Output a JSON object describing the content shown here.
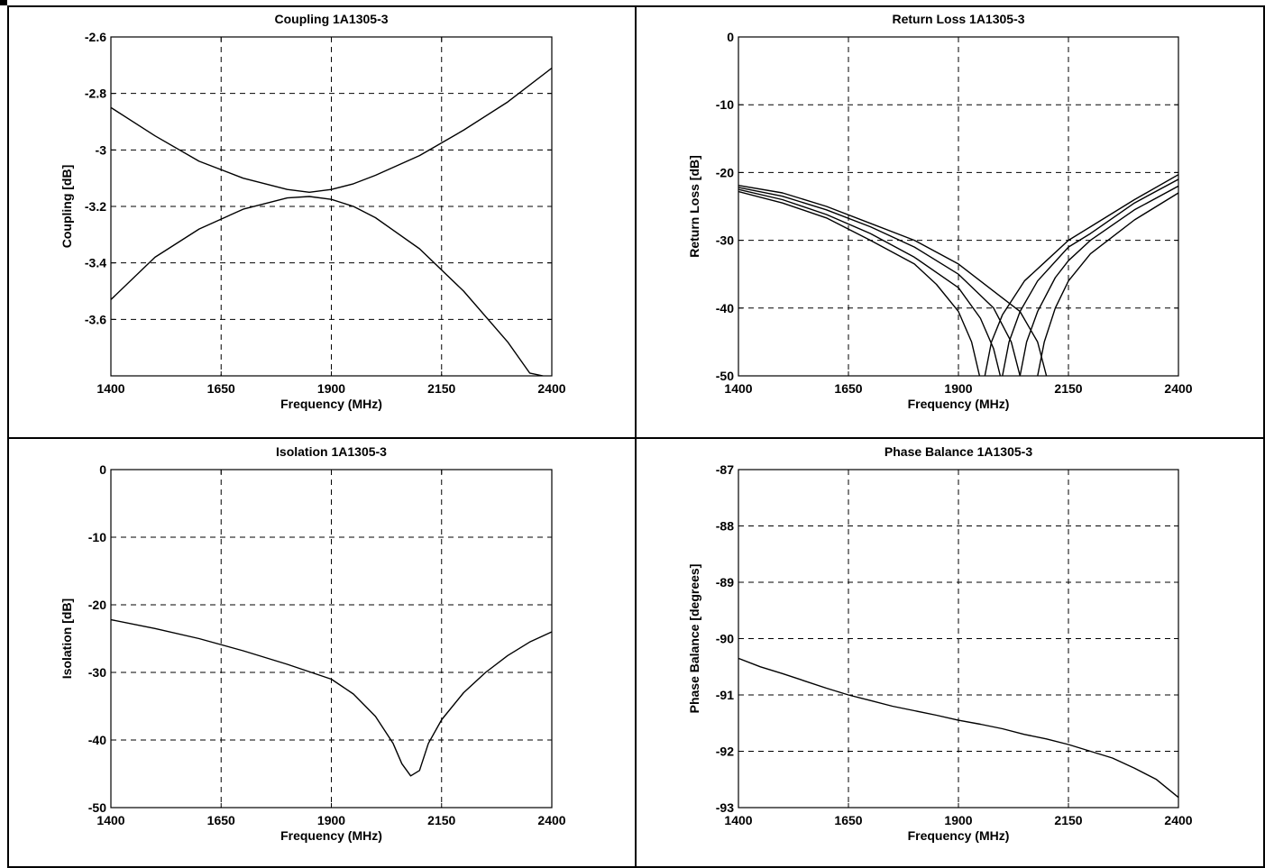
{
  "chart_data": [
    {
      "type": "line",
      "title": "Coupling 1A1305-3",
      "xlabel": "Frequency (MHz)",
      "ylabel": "Coupling [dB]",
      "xlim": [
        1400,
        2400
      ],
      "ylim": [
        -3.8,
        -2.6
      ],
      "xticks": [
        1400,
        1650,
        1900,
        2150,
        2400
      ],
      "xtick_labels": [
        "1400",
        "1650",
        "1900",
        "2150",
        "2400"
      ],
      "yticks": [
        -2.6,
        -2.8,
        -3.0,
        -3.2,
        -3.4,
        -3.6
      ],
      "ytick_labels": [
        "-2.6",
        "-2.8",
        "-3",
        "-3.2",
        "-3.4",
        "-3.6"
      ],
      "grid": true,
      "series": [
        {
          "x": [
            1400,
            1500,
            1600,
            1700,
            1800,
            1850,
            1900,
            1950,
            2000,
            2100,
            2200,
            2300,
            2400
          ],
          "y": [
            -2.85,
            -2.95,
            -3.04,
            -3.1,
            -3.14,
            -3.15,
            -3.14,
            -3.12,
            -3.09,
            -3.02,
            -2.93,
            -2.83,
            -2.71
          ]
        },
        {
          "x": [
            1400,
            1500,
            1600,
            1700,
            1800,
            1850,
            1900,
            1950,
            2000,
            2100,
            2200,
            2300,
            2350,
            2380
          ],
          "y": [
            -3.53,
            -3.38,
            -3.28,
            -3.21,
            -3.17,
            -3.165,
            -3.175,
            -3.2,
            -3.24,
            -3.35,
            -3.5,
            -3.68,
            -3.79,
            -3.8
          ]
        }
      ]
    },
    {
      "type": "line",
      "title": "Return Loss 1A1305-3",
      "xlabel": "Frequency (MHz)",
      "ylabel": "Return Loss [dB]",
      "xlim": [
        1400,
        2400
      ],
      "ylim": [
        -50,
        0
      ],
      "xticks": [
        1400,
        1650,
        1900,
        2150,
        2400
      ],
      "xtick_labels": [
        "1400",
        "1650",
        "1900",
        "2150",
        "2400"
      ],
      "yticks": [
        0,
        -10,
        -20,
        -30,
        -40,
        -50
      ],
      "ytick_labels": [
        "0",
        "-10",
        "-20",
        "-30",
        "-40",
        "-50"
      ],
      "grid": true,
      "series": [
        {
          "x": [
            1400,
            1500,
            1600,
            1700,
            1800,
            1850,
            1900,
            1930,
            1948
          ],
          "y": [
            -22.8,
            -24.5,
            -26.7,
            -30.0,
            -33.5,
            -36.5,
            -40.5,
            -45.0,
            -50.0
          ]
        },
        {
          "x": [
            1400,
            1500,
            1600,
            1700,
            1800,
            1900,
            1950,
            1980,
            1995
          ],
          "y": [
            -22.5,
            -24.0,
            -26.2,
            -29.0,
            -32.5,
            -37.0,
            -41.5,
            -46.0,
            -50.0
          ]
        },
        {
          "x": [
            1400,
            1500,
            1600,
            1700,
            1800,
            1900,
            1980,
            2020,
            2040
          ],
          "y": [
            -22.2,
            -23.5,
            -25.5,
            -28.0,
            -31.0,
            -35.0,
            -40.0,
            -45.0,
            -50.0
          ]
        },
        {
          "x": [
            1400,
            1500,
            1600,
            1700,
            1800,
            1900,
            1990,
            2040,
            2080,
            2100
          ],
          "y": [
            -21.9,
            -23.0,
            -25.0,
            -27.5,
            -30.0,
            -33.5,
            -38.0,
            -40.5,
            -45.0,
            -50.0
          ]
        },
        {
          "x": [
            1960,
            1975,
            2000,
            2050,
            2100,
            2150,
            2200,
            2300,
            2400
          ],
          "y": [
            -50.0,
            -45.0,
            -41.0,
            -36.0,
            -33.0,
            -30.0,
            -28.0,
            -24.0,
            -20.3
          ]
        },
        {
          "x": [
            2000,
            2015,
            2040,
            2080,
            2150,
            2200,
            2300,
            2400
          ],
          "y": [
            -50.0,
            -45.0,
            -40.5,
            -36.0,
            -31.0,
            -29.0,
            -24.5,
            -21.0
          ]
        },
        {
          "x": [
            2040,
            2055,
            2080,
            2120,
            2150,
            2200,
            2300,
            2400
          ],
          "y": [
            -50.0,
            -45.0,
            -40.5,
            -35.5,
            -33.0,
            -30.0,
            -25.5,
            -22.0
          ]
        },
        {
          "x": [
            2080,
            2095,
            2120,
            2150,
            2200,
            2300,
            2400
          ],
          "y": [
            -50.0,
            -45.0,
            -40.0,
            -36.0,
            -32.0,
            -27.0,
            -23.0
          ]
        }
      ]
    },
    {
      "type": "line",
      "title": "Isolation 1A1305-3",
      "xlabel": "Frequency (MHz)",
      "ylabel": "Isolation [dB]",
      "xlim": [
        1400,
        2400
      ],
      "ylim": [
        -50,
        0
      ],
      "xticks": [
        1400,
        1650,
        1900,
        2150,
        2400
      ],
      "xtick_labels": [
        "1400",
        "1650",
        "1900",
        "2150",
        "2400"
      ],
      "yticks": [
        0,
        -10,
        -20,
        -30,
        -40,
        -50
      ],
      "ytick_labels": [
        "0",
        "-10",
        "-20",
        "-30",
        "-40",
        "-50"
      ],
      "grid": true,
      "series": [
        {
          "x": [
            1400,
            1500,
            1600,
            1700,
            1800,
            1900,
            1950,
            2000,
            2040,
            2060,
            2080,
            2100,
            2120,
            2150,
            2200,
            2250,
            2300,
            2350,
            2400
          ],
          "y": [
            -22.2,
            -23.5,
            -25.0,
            -26.8,
            -28.8,
            -31.0,
            -33.2,
            -36.5,
            -40.5,
            -43.5,
            -45.3,
            -44.5,
            -40.5,
            -37.0,
            -33.0,
            -30.0,
            -27.5,
            -25.5,
            -24.0
          ]
        }
      ]
    },
    {
      "type": "line",
      "title": "Phase Balance 1A1305-3",
      "xlabel": "Frequency (MHz)",
      "ylabel": "Phase Balance [degrees]",
      "xlim": [
        1400,
        2400
      ],
      "ylim": [
        -93,
        -87
      ],
      "xticks": [
        1400,
        1650,
        1900,
        2150,
        2400
      ],
      "xtick_labels": [
        "1400",
        "1650",
        "1900",
        "2150",
        "2400"
      ],
      "yticks": [
        -87,
        -88,
        -89,
        -90,
        -91,
        -92,
        -93
      ],
      "ytick_labels": [
        "-87",
        "-88",
        "-89",
        "-90",
        "-91",
        "-92",
        "-93"
      ],
      "grid": true,
      "series": [
        {
          "x": [
            1400,
            1450,
            1500,
            1550,
            1600,
            1650,
            1700,
            1750,
            1800,
            1850,
            1900,
            1950,
            2000,
            2050,
            2100,
            2150,
            2200,
            2250,
            2300,
            2350,
            2400
          ],
          "y": [
            -90.35,
            -90.5,
            -90.62,
            -90.75,
            -90.88,
            -91.0,
            -91.1,
            -91.2,
            -91.28,
            -91.36,
            -91.45,
            -91.52,
            -91.6,
            -91.7,
            -91.78,
            -91.88,
            -92.0,
            -92.12,
            -92.3,
            -92.5,
            -92.82
          ]
        }
      ]
    }
  ]
}
